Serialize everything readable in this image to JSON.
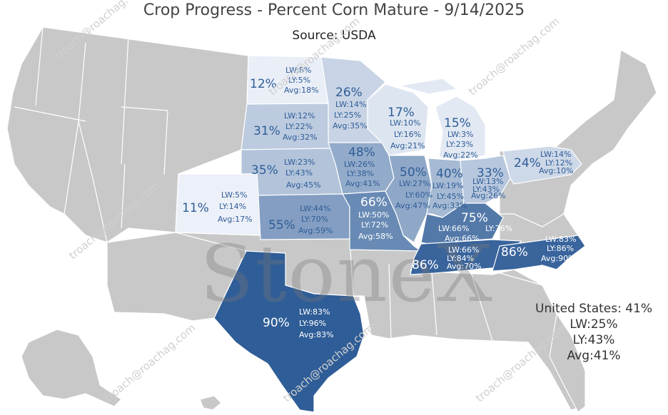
{
  "title": "Crop Progress - Percent Corn Mature - 9/14/2025",
  "subtitle": "Source: USDA",
  "colors": {
    "no_data": "#c8c8c8",
    "border": "#ffffff",
    "scale_low": "#eef2f9",
    "scale_high": "#2f5d97",
    "label_dark": "#2f5d97",
    "label_light": "#ffffff"
  },
  "states": [
    {
      "code": "ND",
      "pct": "12%",
      "lw": "LW:8%",
      "ly": "LY:5%",
      "avg": "Avg:18%",
      "value": 12
    },
    {
      "code": "MN",
      "pct": "26%",
      "lw": "LW:14%",
      "ly": "LY:25%",
      "avg": "Avg:35%",
      "value": 26
    },
    {
      "code": "WI",
      "pct": "17%",
      "lw": "LW:10%",
      "ly": "LY:16%",
      "avg": "Avg:21%",
      "value": 17
    },
    {
      "code": "MI",
      "pct": "15%",
      "lw": "LW:3%",
      "ly": "LY:23%",
      "avg": "Avg:22%",
      "value": 15
    },
    {
      "code": "SD",
      "pct": "31%",
      "lw": "LW:12%",
      "ly": "LY:22%",
      "avg": "Avg:32%",
      "value": 31
    },
    {
      "code": "NE",
      "pct": "35%",
      "lw": "LW:23%",
      "ly": "LY:43%",
      "avg": "Avg:45%",
      "value": 35
    },
    {
      "code": "IA",
      "pct": "48%",
      "lw": "LW:26%",
      "ly": "LY:38%",
      "avg": "Avg:41%",
      "value": 48
    },
    {
      "code": "IL",
      "pct": "50%",
      "lw": "LW:27%",
      "ly": "LY:60%",
      "avg": "Avg:47%",
      "value": 50
    },
    {
      "code": "IN",
      "pct": "40%",
      "lw": "LW:19%",
      "ly": "LY:45%",
      "avg": "Avg:33%",
      "value": 40
    },
    {
      "code": "OH",
      "pct": "33%",
      "lw": "LW:13%",
      "ly": "LY:43%",
      "avg": "Avg:26%",
      "value": 33
    },
    {
      "code": "PA",
      "pct": "24%",
      "lw": "LW:14%",
      "ly": "LY:12%",
      "avg": "Avg:10%",
      "value": 24
    },
    {
      "code": "CO",
      "pct": "11%",
      "lw": "LW:5%",
      "ly": "LY:14%",
      "avg": "Avg:17%",
      "value": 11
    },
    {
      "code": "KS",
      "pct": "55%",
      "lw": "LW:44%",
      "ly": "LY:70%",
      "avg": "Avg:59%",
      "value": 55
    },
    {
      "code": "MO",
      "pct": "66%",
      "lw": "LW:50%",
      "ly": "LY:72%",
      "avg": "Avg:58%",
      "value": 66
    },
    {
      "code": "KY",
      "pct": "75%",
      "lw": "LW:66%",
      "ly": "LY:76%",
      "avg": "Avg:66%",
      "value": 75
    },
    {
      "code": "TN",
      "pct": "86%",
      "lw": "LW:66%",
      "ly": "LY:84%",
      "avg": "Avg:70%",
      "value": 86
    },
    {
      "code": "NC",
      "pct": "86%",
      "lw": "LW:83%",
      "ly": "LY:86%",
      "avg": "Avg:90%",
      "value": 86
    },
    {
      "code": "TX",
      "pct": "90%",
      "lw": "LW:83%",
      "ly": "LY:96%",
      "avg": "Avg:83%",
      "value": 90
    }
  ],
  "us": {
    "label": "United States:",
    "pct": "41%",
    "lw": "LW:25%",
    "ly": "LY:43%",
    "avg": "Avg:41%"
  },
  "watermark": {
    "logo": "StoneX",
    "site": "troach@roachag.com"
  }
}
